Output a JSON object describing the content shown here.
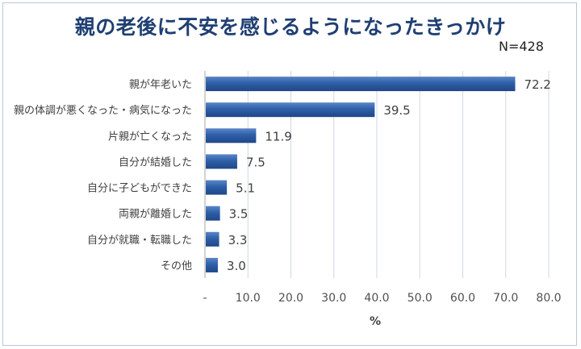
{
  "title": "親の老後に不安を感じるようになったきっかけ",
  "sample_size": "N=428",
  "chart_data": {
    "type": "bar",
    "orientation": "horizontal",
    "categories": [
      "親が年老いた",
      "親の体調が悪くなった・病気になった",
      "片親が亡くなった",
      "自分が結婚した",
      "自分に子どもができた",
      "両親が離婚した",
      "自分が就職・転職した",
      "その他"
    ],
    "values": [
      72.2,
      39.5,
      11.9,
      7.5,
      5.1,
      3.5,
      3.3,
      3.0
    ],
    "value_labels": [
      "72.2",
      "39.5",
      "11.9",
      "7.5",
      "5.1",
      "3.5",
      "3.3",
      "3.0"
    ],
    "xlabel": "%",
    "xlim": [
      0,
      80
    ],
    "x_ticks": [
      "-",
      "10.0",
      "20.0",
      "30.0",
      "40.0",
      "50.0",
      "60.0",
      "70.0",
      "80.0"
    ],
    "grid": true,
    "bar_color": "#2e5fa8"
  }
}
